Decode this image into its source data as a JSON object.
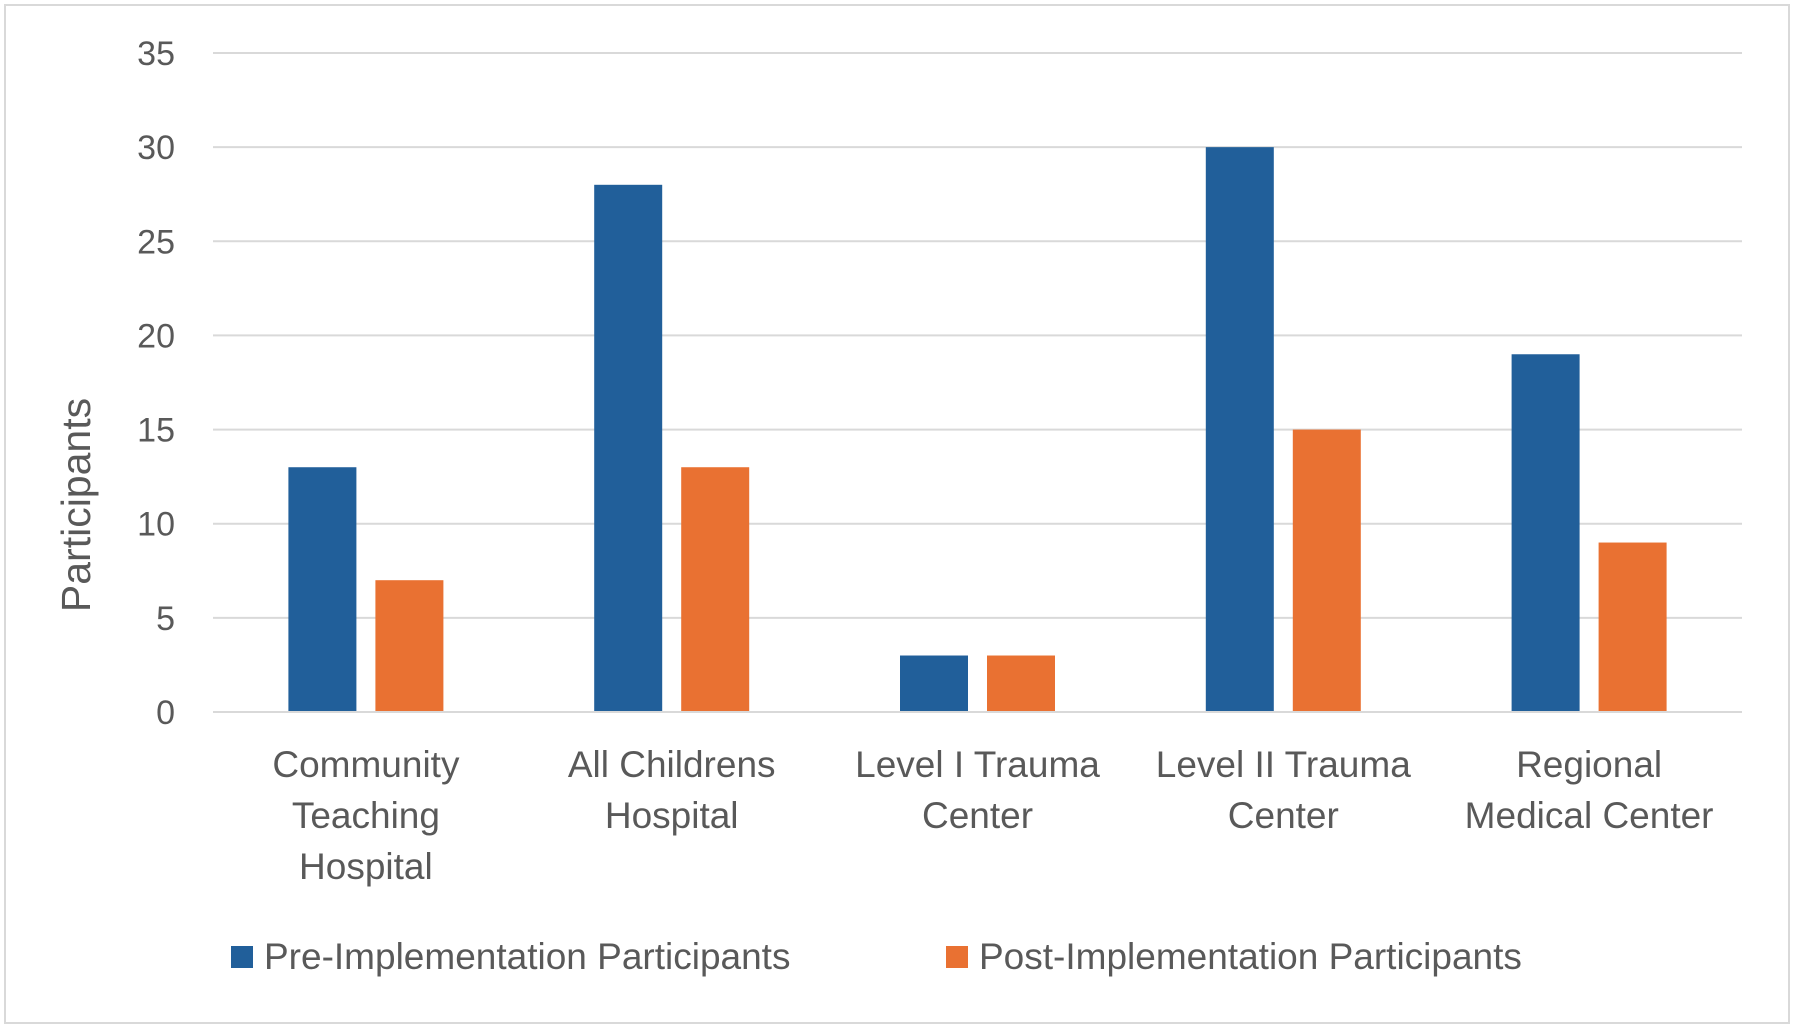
{
  "chart_data": {
    "type": "bar",
    "title": "",
    "xlabel": "",
    "ylabel": "Participants",
    "ylim": [
      0,
      35
    ],
    "yticks": [
      0,
      5,
      10,
      15,
      20,
      25,
      30,
      35
    ],
    "grid": true,
    "legend_position": "bottom",
    "categories": [
      [
        "Community",
        "Teaching",
        "Hospital"
      ],
      [
        "All Childrens",
        "Hospital"
      ],
      [
        "Level I Trauma",
        "Center"
      ],
      [
        "Level II Trauma",
        "Center"
      ],
      [
        "Regional",
        "Medical Center"
      ]
    ],
    "series": [
      {
        "name": "Pre-Implementation Participants",
        "color": "#215F9A",
        "values": [
          13,
          28,
          3,
          30,
          19
        ]
      },
      {
        "name": "Post-Implementation Participants",
        "color": "#E97132",
        "values": [
          7,
          13,
          3,
          15,
          9
        ]
      }
    ]
  }
}
